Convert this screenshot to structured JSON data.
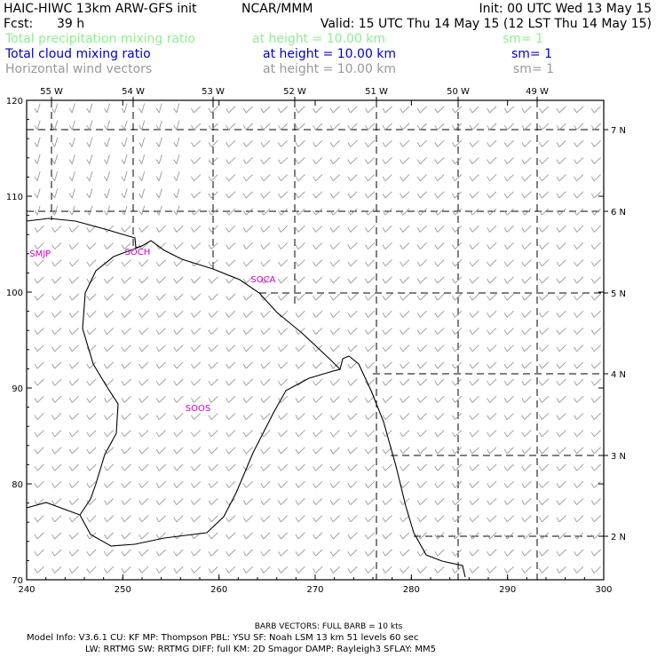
{
  "header": {
    "title": "HAIC-HIWC 13km ARW-GFS init",
    "org": "NCAR/MMM",
    "init": "Init: 00 UTC Wed 13 May 15",
    "fcst_label": "Fcst:",
    "fcst_value": "39 h",
    "valid": "Valid: 15 UTC Thu 14 May 15 (12 LST Thu 14 May 15)"
  },
  "fields": [
    {
      "name": "Total precipitation mixing ratio",
      "level": "at height = 10.00 km",
      "smooth": "sm= 1",
      "color": "#90ee90"
    },
    {
      "name": "Total cloud mixing ratio",
      "level": "at height = 10.00 km",
      "smooth": "sm= 1",
      "color": "#0000cc"
    },
    {
      "name": "Horizontal wind vectors",
      "level": "at height = 10.00 km",
      "smooth": "sm= 1",
      "color": "#999999"
    }
  ],
  "map": {
    "x_range": [
      240,
      300
    ],
    "y_range": [
      70,
      120
    ],
    "x_ticks": [
      "240",
      "250",
      "260",
      "270",
      "280",
      "290",
      "300"
    ],
    "y_ticks": [
      "70",
      "80",
      "90",
      "100",
      "110",
      "120"
    ],
    "lon_labels": [
      "55 W",
      "54 W",
      "53 W",
      "52 W",
      "51 W",
      "50 W",
      "49 W"
    ],
    "lat_labels": [
      "7 N",
      "6 N",
      "5 N",
      "4 N",
      "3 N",
      "2 N"
    ],
    "stations": [
      {
        "id": "SMJP",
        "x": 240.3,
        "y": 103.7
      },
      {
        "id": "SOCH",
        "x": 250.2,
        "y": 103.9
      },
      {
        "id": "SOCA",
        "x": 263.3,
        "y": 101.0
      },
      {
        "id": "SOOS",
        "x": 256.5,
        "y": 87.6
      }
    ]
  },
  "footer": {
    "barb": "BARB VECTORS:  FULL BARB = 10 kts",
    "line1": "Model Info: V3.6.1     CU: KF       MP: Thompson     PBL: YSU       SF: Noah LSM      13 km    51 levels    60 sec",
    "line2": "LW: RRTMG    SW: RRTMG   DIFF: full     KM: 2D Smagor  DAMP: Rayleigh3   SFLAY: MM5"
  }
}
